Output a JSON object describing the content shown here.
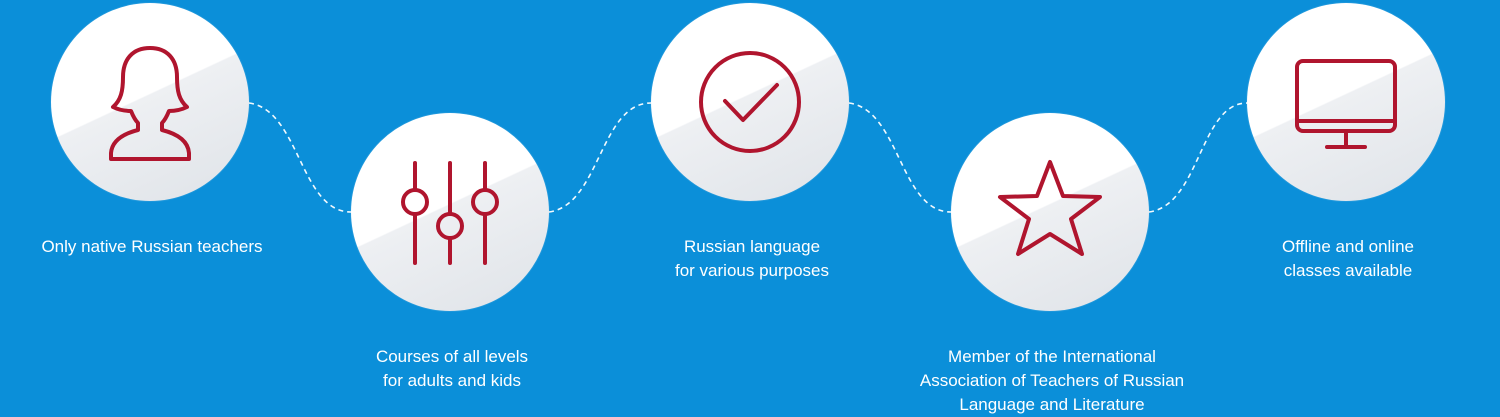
{
  "features": [
    {
      "icon": "woman-silhouette-icon",
      "caption_lines": [
        "Only native Russian teachers"
      ]
    },
    {
      "icon": "sliders-icon",
      "caption_lines": [
        "Courses of all levels",
        "for adults and kids"
      ]
    },
    {
      "icon": "checkmark-circle-icon",
      "caption_lines": [
        "Russian language",
        "for various purposes"
      ]
    },
    {
      "icon": "star-icon",
      "caption_lines": [
        "Member of the International",
        "Association of Teachers of Russian",
        "Language and Literature"
      ]
    },
    {
      "icon": "monitor-icon",
      "caption_lines": [
        "Offline and online",
        "classes available"
      ]
    }
  ],
  "colors": {
    "background": "#0b8fd9",
    "icon_stroke": "#b0152e",
    "text": "#ffffff"
  }
}
